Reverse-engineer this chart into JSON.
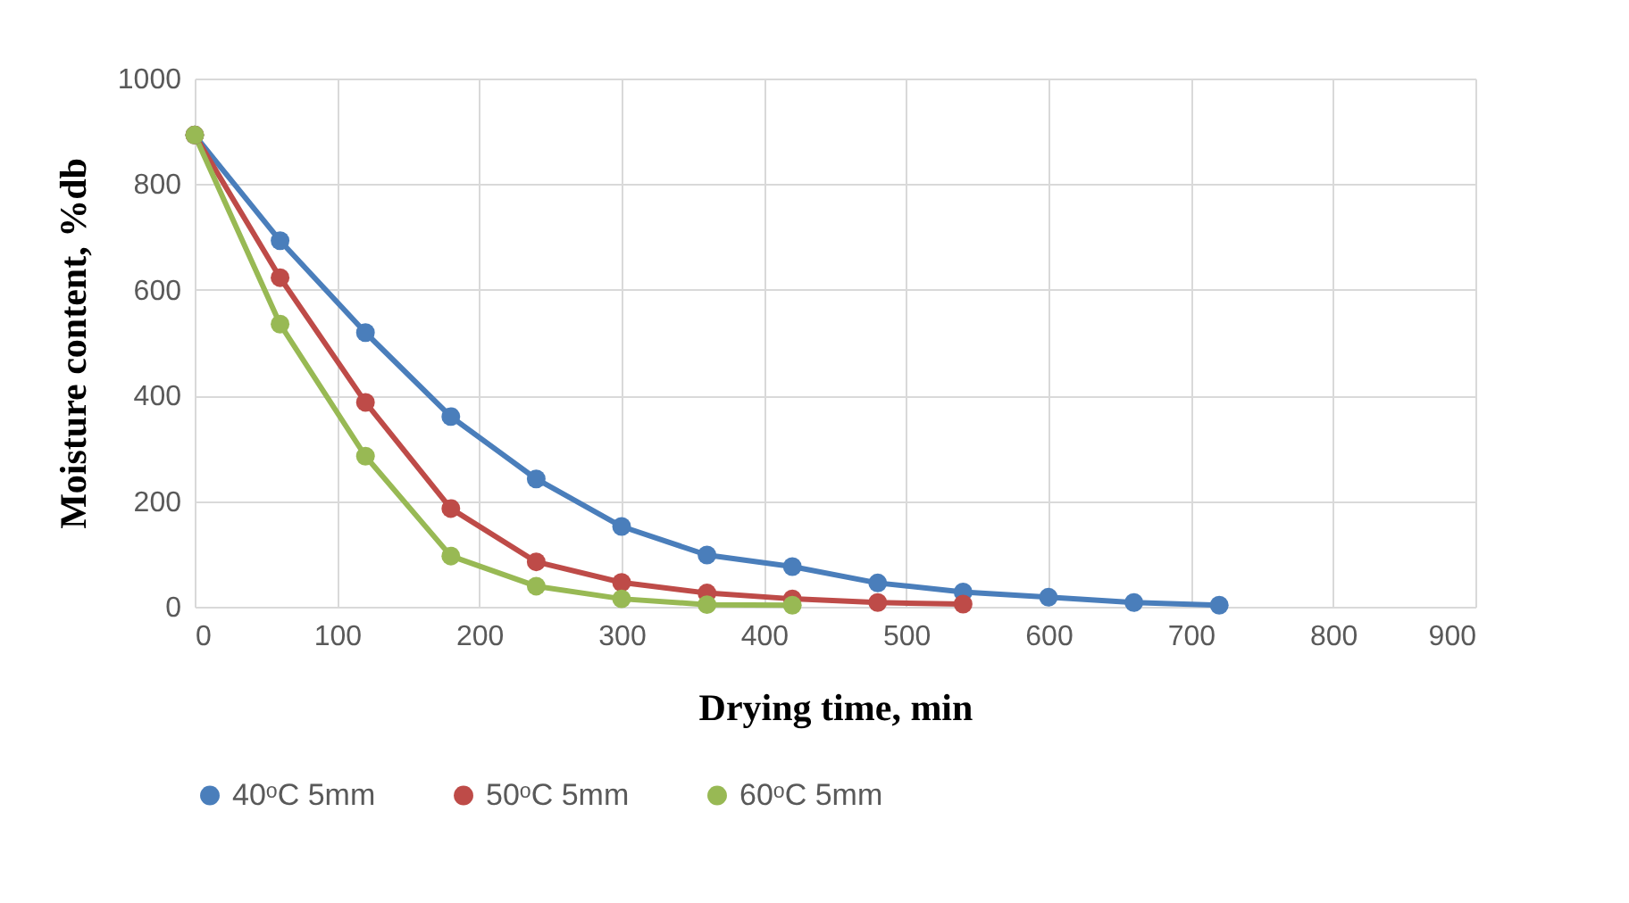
{
  "chart_data": {
    "type": "line",
    "xlabel": "Drying time, min",
    "ylabel": "Moisture content, %db",
    "xlim": [
      0,
      900
    ],
    "xticks": [
      0,
      100,
      200,
      300,
      400,
      500,
      600,
      700,
      800,
      900
    ],
    "ylim": [
      0,
      1000
    ],
    "yticks": [
      0,
      200,
      400,
      600,
      800,
      1000
    ],
    "grid": true,
    "legend": "bottom",
    "marker": "circle",
    "line_style": "solid",
    "series": [
      {
        "name": "40ᵒC 5mm",
        "color": "#4a7ebb",
        "x": [
          0,
          60,
          120,
          180,
          240,
          300,
          360,
          420,
          480,
          540,
          600,
          660,
          720
        ],
        "values": [
          893,
          693,
          519,
          360,
          242,
          152,
          98,
          76,
          45,
          28,
          18,
          8,
          3
        ]
      },
      {
        "name": "50ᵒC 5mm",
        "color": "#be4b48",
        "x": [
          0,
          60,
          120,
          180,
          240,
          300,
          360,
          420,
          480,
          540
        ],
        "values": [
          893,
          623,
          387,
          186,
          85,
          46,
          26,
          15,
          8,
          5
        ]
      },
      {
        "name": "60ᵒC 5mm",
        "color": "#98b954",
        "x": [
          0,
          60,
          120,
          180,
          240,
          300,
          360,
          420
        ],
        "values": [
          893,
          535,
          285,
          96,
          39,
          15,
          4,
          3
        ]
      }
    ]
  }
}
